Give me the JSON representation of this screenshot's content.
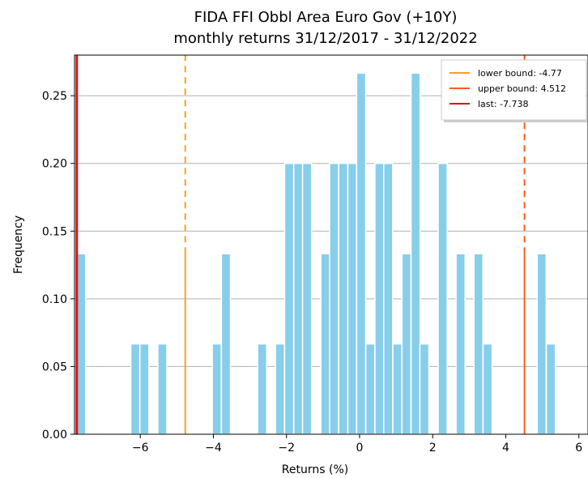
{
  "chart_data": {
    "type": "bar",
    "title": [
      "FIDA FFI Obbl Area Euro Gov (+10Y)",
      "monthly returns 31/12/2017 - 31/12/2022"
    ],
    "xlabel": "Returns (%)",
    "ylabel": "Frequency",
    "xlim": [
      -7.8,
      6.25
    ],
    "ylim": [
      0,
      0.28
    ],
    "xticks": [
      -6,
      -4,
      -2,
      0,
      2,
      4,
      6
    ],
    "xtick_labels": [
      "−6",
      "−4",
      "−2",
      "0",
      "2",
      "4",
      "6"
    ],
    "yticks": [
      0.0,
      0.05,
      0.1,
      0.15,
      0.2,
      0.25
    ],
    "ytick_labels": [
      "0.00",
      "0.05",
      "0.10",
      "0.15",
      "0.20",
      "0.25"
    ],
    "grid": "horizontal",
    "bar_color": "#87ceeb",
    "bars": [
      {
        "x": -7.738,
        "y": 0.1333
      },
      {
        "x": -6.26,
        "y": 0.0667
      },
      {
        "x": -6.01,
        "y": 0.0667
      },
      {
        "x": -5.52,
        "y": 0.0667
      },
      {
        "x": -4.03,
        "y": 0.0667
      },
      {
        "x": -3.78,
        "y": 0.1333
      },
      {
        "x": -2.79,
        "y": 0.0667
      },
      {
        "x": -2.3,
        "y": 0.0667
      },
      {
        "x": -2.05,
        "y": 0.2
      },
      {
        "x": -1.8,
        "y": 0.2
      },
      {
        "x": -1.56,
        "y": 0.2
      },
      {
        "x": -1.06,
        "y": 0.1333
      },
      {
        "x": -0.82,
        "y": 0.2
      },
      {
        "x": -0.57,
        "y": 0.2
      },
      {
        "x": -0.32,
        "y": 0.2
      },
      {
        "x": -0.08,
        "y": 0.2667
      },
      {
        "x": 0.17,
        "y": 0.0667
      },
      {
        "x": 0.42,
        "y": 0.2
      },
      {
        "x": 0.66,
        "y": 0.2
      },
      {
        "x": 0.91,
        "y": 0.0667
      },
      {
        "x": 1.16,
        "y": 0.1333
      },
      {
        "x": 1.41,
        "y": 0.2667
      },
      {
        "x": 1.65,
        "y": 0.0667
      },
      {
        "x": 2.15,
        "y": 0.2
      },
      {
        "x": 2.64,
        "y": 0.1333
      },
      {
        "x": 3.13,
        "y": 0.1333
      },
      {
        "x": 3.38,
        "y": 0.0667
      },
      {
        "x": 4.86,
        "y": 0.1333
      },
      {
        "x": 5.11,
        "y": 0.0667
      }
    ],
    "vlines": [
      {
        "x": -4.77,
        "label": "lower bound: -4.77",
        "color": "#ff9f1c"
      },
      {
        "x": 4.512,
        "label": "upper bound: 4.512",
        "color": "#ff5a1c"
      },
      {
        "x": -7.738,
        "label": "last: -7.738",
        "color": "#e01010"
      }
    ],
    "legend_position": "top-right"
  }
}
